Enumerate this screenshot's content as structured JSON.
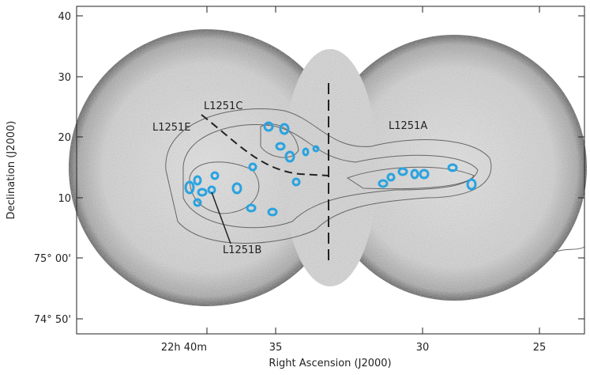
{
  "figure": {
    "x_label": "Right Ascension (J2000)",
    "y_label": "Declination (J2000)",
    "x_ticks": [
      "22h 40m",
      "35",
      "30",
      "25"
    ],
    "y_ticks": [
      "40",
      "30",
      "20",
      "10",
      "75° 00'",
      "74° 50'"
    ],
    "annotations": [
      "L1251C",
      "L1251E",
      "L1251A",
      "L1251B"
    ]
  }
}
